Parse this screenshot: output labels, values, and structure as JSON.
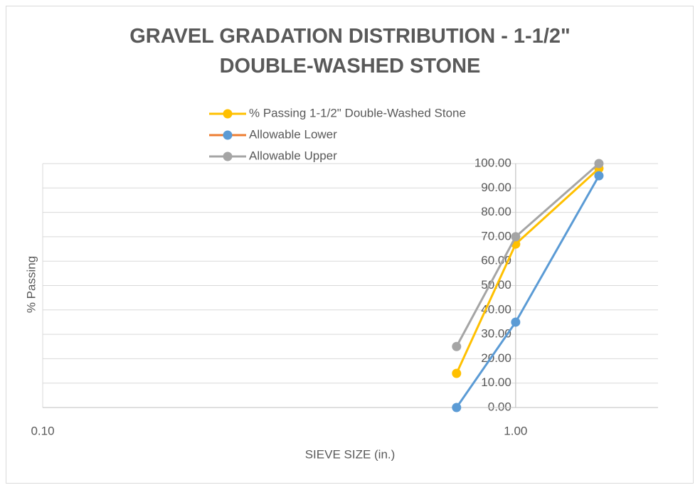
{
  "chart_data": {
    "type": "line",
    "title": "GRAVEL GRADATION DISTRIBUTION - 1-1/2\" DOUBLE-WASHED STONE",
    "x_label": "SIEVE SIZE (in.)",
    "y_label": "% Passing",
    "x": [
      0.75,
      1.0,
      1.5
    ],
    "series": [
      {
        "name": "% Passing 1-1/2\" Double-Washed Stone",
        "color": "#FFC000",
        "values": [
          14,
          67,
          98
        ]
      },
      {
        "name": "Allowable Lower",
        "color": "#5B9BD5",
        "legend_line_color": "#ED7D31",
        "values": [
          0,
          35,
          95
        ]
      },
      {
        "name": "Allowable Upper",
        "color": "#A5A5A5",
        "values": [
          25,
          70,
          100
        ]
      }
    ],
    "x_log": true,
    "xlim": [
      0.1,
      2.0
    ],
    "xticks": [
      {
        "value": 0.1,
        "label": "0.10"
      },
      {
        "value": 1,
        "label": "1.00"
      }
    ],
    "ylim": [
      0,
      100
    ],
    "yticks": [
      {
        "value": 0,
        "label": "0.00"
      },
      {
        "value": 10,
        "label": "10.00"
      },
      {
        "value": 20,
        "label": "20.00"
      },
      {
        "value": 30,
        "label": "30.00"
      },
      {
        "value": 40,
        "label": "40.00"
      },
      {
        "value": 50,
        "label": "50.00"
      },
      {
        "value": 60,
        "label": "60.00"
      },
      {
        "value": 70,
        "label": "70.00"
      },
      {
        "value": 80,
        "label": "80.00"
      },
      {
        "value": 90,
        "label": "90.00"
      },
      {
        "value": 100,
        "label": "100.00"
      }
    ],
    "y_axis_crosses_at": 1,
    "grid": true,
    "legend": "top"
  }
}
